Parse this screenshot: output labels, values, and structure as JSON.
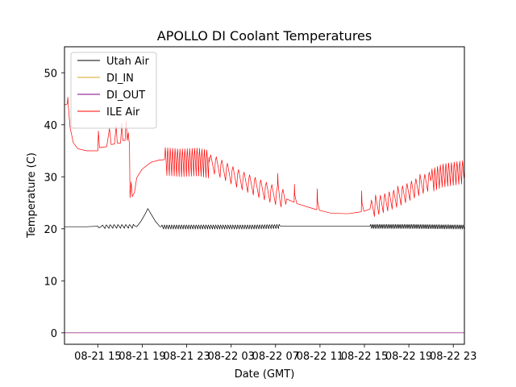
{
  "chart_data": {
    "type": "line",
    "title": "APOLLO DI Coolant Temperatures",
    "xlabel": "Date (GMT)",
    "ylabel": "Temperature (C)",
    "x_unit": "hours since 2023-08-21 12:00 GMT",
    "xlim": [
      0,
      36
    ],
    "ylim": [
      -2.2,
      55
    ],
    "x_ticks": [
      {
        "x": 3,
        "label": "08-21 15"
      },
      {
        "x": 7,
        "label": "08-21 19"
      },
      {
        "x": 11,
        "label": "08-21 23"
      },
      {
        "x": 15,
        "label": "08-22 03"
      },
      {
        "x": 19,
        "label": "08-22 07"
      },
      {
        "x": 23,
        "label": "08-22 11"
      },
      {
        "x": 27,
        "label": "08-22 15"
      },
      {
        "x": 31,
        "label": "08-22 19"
      },
      {
        "x": 35,
        "label": "08-22 23"
      }
    ],
    "y_ticks": [
      0,
      10,
      20,
      30,
      40,
      50
    ],
    "legend": {
      "location": "upper-left"
    },
    "series": [
      {
        "name": "Utah Air",
        "color": "#000000",
        "points": [
          [
            0,
            20.4
          ],
          [
            2,
            20.4
          ],
          [
            3.0,
            20.5
          ],
          [
            3.1,
            20.2
          ],
          [
            3.3,
            20.4
          ],
          [
            4.3,
            20.5
          ],
          [
            6.2,
            20.5
          ],
          [
            6.5,
            20.4
          ],
          [
            6.9,
            21.5
          ],
          [
            7.3,
            23.0
          ],
          [
            7.5,
            23.9
          ],
          [
            7.8,
            22.8
          ],
          [
            8.2,
            21.4
          ],
          [
            8.6,
            20.4
          ],
          [
            10,
            20.4
          ],
          [
            14,
            20.4
          ],
          [
            17,
            20.4
          ],
          [
            19.5,
            20.5
          ],
          [
            23,
            20.5
          ],
          [
            27,
            20.5
          ],
          [
            31,
            20.5
          ],
          [
            36,
            20.4
          ]
        ],
        "oscillation": [
          {
            "from": 3.3,
            "to": 6.3,
            "period": 0.35,
            "amplitude": 0.4
          },
          {
            "from": 8.7,
            "to": 19.4,
            "period": 0.22,
            "amplitude": 0.45
          },
          {
            "from": 27.5,
            "to": 36,
            "period": 0.16,
            "amplitude": 0.45
          }
        ]
      },
      {
        "name": "DI_IN",
        "color": "#DAA520",
        "points": [
          [
            0,
            0
          ],
          [
            36,
            0
          ]
        ]
      },
      {
        "name": "DI_OUT",
        "color": "#800080",
        "points": [
          [
            0,
            0
          ],
          [
            36,
            0
          ]
        ]
      },
      {
        "name": "ILE Air",
        "color": "#FF0000",
        "points": [
          [
            0,
            43.8
          ],
          [
            0.25,
            44.0
          ],
          [
            0.3,
            45.3
          ],
          [
            0.35,
            43.5
          ],
          [
            0.5,
            39.5
          ],
          [
            0.8,
            36.5
          ],
          [
            1.2,
            35.4
          ],
          [
            2,
            35.0
          ],
          [
            3.0,
            35.0
          ],
          [
            3.05,
            38.8
          ],
          [
            3.15,
            35.6
          ],
          [
            3.8,
            35.8
          ],
          [
            4.05,
            39.3
          ],
          [
            4.2,
            36.2
          ],
          [
            4.5,
            36.3
          ],
          [
            4.65,
            39.9
          ],
          [
            4.75,
            36.5
          ],
          [
            5.05,
            36.5
          ],
          [
            5.15,
            40.3
          ],
          [
            5.25,
            37.0
          ],
          [
            5.45,
            37.0
          ],
          [
            5.55,
            40.8
          ],
          [
            5.65,
            37.0
          ],
          [
            5.75,
            38.5
          ],
          [
            5.8,
            37.0
          ],
          [
            5.85,
            36.5
          ],
          [
            5.9,
            26.0
          ],
          [
            6.0,
            29.0
          ],
          [
            6.1,
            26.2
          ],
          [
            6.3,
            27.0
          ],
          [
            6.5,
            29.8
          ],
          [
            7.0,
            31.5
          ],
          [
            7.8,
            32.8
          ],
          [
            8.5,
            33.2
          ],
          [
            9.0,
            33.3
          ],
          [
            10.5,
            33.0
          ],
          [
            12,
            33.2
          ],
          [
            13.5,
            32.5
          ],
          [
            15.5,
            30.0
          ],
          [
            17.5,
            28.0
          ],
          [
            19.5,
            26.2
          ],
          [
            21,
            24.8
          ],
          [
            22.5,
            23.8
          ],
          [
            24,
            23.0
          ],
          [
            25.5,
            22.9
          ],
          [
            26.5,
            23.2
          ],
          [
            27,
            23.4
          ],
          [
            27.5,
            23.8
          ],
          [
            28,
            24.5
          ],
          [
            30,
            26.2
          ],
          [
            32,
            28.5
          ],
          [
            34,
            30.5
          ],
          [
            36,
            31.2
          ]
        ],
        "oscillation": [
          {
            "from": 9.0,
            "to": 13.0,
            "period": 0.22,
            "amplitude": 3.0
          },
          {
            "from": 13.0,
            "to": 20.0,
            "period": 0.5,
            "amplitude": 2.0
          },
          {
            "from": 27.5,
            "to": 33.0,
            "period": 0.4,
            "amplitude": 2.0
          },
          {
            "from": 33.0,
            "to": 36.0,
            "period": 0.25,
            "amplitude": 2.5
          }
        ],
        "spikes": [
          [
            19.2,
            3.0
          ],
          [
            20.7,
            3.5
          ],
          [
            22.75,
            4.0
          ],
          [
            26.75,
            4.0
          ]
        ]
      }
    ]
  }
}
